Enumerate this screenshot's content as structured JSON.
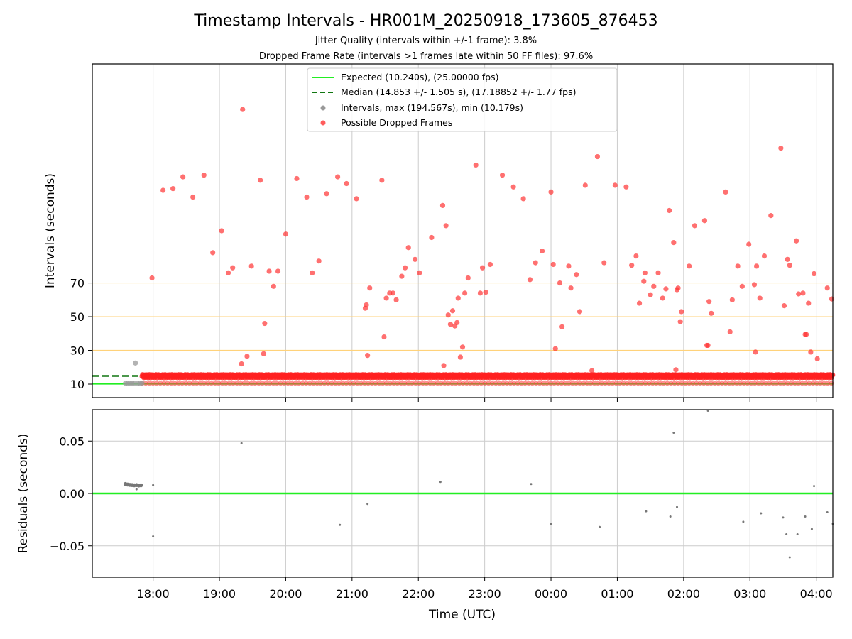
{
  "chart_data": [
    {
      "type": "scatter",
      "title": "Timestamp Intervals - HR001M_20250918_173605_876453",
      "subtitles": [
        "Jitter Quality (intervals within +/-1 frame): 3.8%",
        "Dropped Frame Rate (intervals >1 frames late within 50 FF files): 97.6%"
      ],
      "ylabel": "Intervals (seconds)",
      "xlim": [
        "17:05",
        "04:15"
      ],
      "xticks": [
        "18:00",
        "19:00",
        "20:00",
        "21:00",
        "22:00",
        "23:00",
        "00:00",
        "01:00",
        "02:00",
        "03:00",
        "04:00"
      ],
      "ylim": [
        2,
        200
      ],
      "yticks": [
        "10",
        "30",
        "50",
        "70"
      ],
      "ytick_values": [
        10,
        30,
        50,
        70
      ],
      "reference_lines": [
        {
          "y": 10.24,
          "color": "#22ee22",
          "style": "solid",
          "label": "Expected (10.240s), (25.00000 fps)"
        },
        {
          "y": 14.853,
          "color": "#117711",
          "style": "dashed",
          "label": "Median (14.853 +/- 1.505 s), (17.18852 +/- 1.77 fps)"
        }
      ],
      "threshold_lines": {
        "values": [
          30,
          50,
          70
        ],
        "color": "#ffd27a"
      },
      "legend": {
        "placement": "top-center",
        "entries": [
          {
            "label": "Expected (10.240s), (25.00000 fps)",
            "kind": "line",
            "color": "#22ee22"
          },
          {
            "label": "Median (14.853 +/- 1.505 s), (17.18852 +/- 1.77 fps)",
            "kind": "dashed",
            "color": "#117711"
          },
          {
            "label": "Intervals, max (194.567s), min (10.179s)",
            "kind": "point",
            "color": "#999999"
          },
          {
            "label": "Possible Dropped Frames",
            "kind": "point",
            "color": "#ff3333"
          }
        ]
      },
      "series": [
        {
          "name": "Intervals",
          "color": "#999999",
          "points": [
            [
              "17:35",
              10.5
            ],
            [
              "17:37",
              10.4
            ],
            [
              "17:39",
              10.5
            ],
            [
              "17:41",
              10.6
            ],
            [
              "17:43",
              10.5
            ],
            [
              "17:44",
              22.5
            ],
            [
              "17:46",
              10.4
            ],
            [
              "17:48",
              10.5
            ],
            [
              "17:50",
              10.6
            ]
          ]
        },
        {
          "name": "Possible Dropped Frames",
          "color": "#ff3333",
          "points": [
            [
              "17:59",
              73
            ],
            [
              "18:09",
              125
            ],
            [
              "18:18",
              126
            ],
            [
              "18:27",
              133
            ],
            [
              "18:36",
              121
            ],
            [
              "18:46",
              134
            ],
            [
              "18:54",
              88
            ],
            [
              "19:02",
              101
            ],
            [
              "19:08",
              76
            ],
            [
              "19:12",
              79
            ],
            [
              "19:20",
              22
            ],
            [
              "19:21",
              173
            ],
            [
              "19:25",
              26.5
            ],
            [
              "19:29",
              80
            ],
            [
              "19:37",
              131
            ],
            [
              "19:40",
              28
            ],
            [
              "19:41",
              46
            ],
            [
              "19:45",
              77
            ],
            [
              "19:49",
              68
            ],
            [
              "19:53",
              77
            ],
            [
              "20:00",
              99
            ],
            [
              "20:10",
              132
            ],
            [
              "20:19",
              121
            ],
            [
              "20:24",
              76
            ],
            [
              "20:30",
              83
            ],
            [
              "20:37",
              123
            ],
            [
              "20:47",
              133
            ],
            [
              "20:55",
              129
            ],
            [
              "21:04",
              120
            ],
            [
              "21:12",
              55
            ],
            [
              "21:13",
              57
            ],
            [
              "21:14",
              27
            ],
            [
              "21:16",
              67
            ],
            [
              "21:27",
              131
            ],
            [
              "21:29",
              38
            ],
            [
              "21:31",
              61
            ],
            [
              "21:34",
              64
            ],
            [
              "21:37",
              64
            ],
            [
              "21:40",
              60
            ],
            [
              "21:45",
              74
            ],
            [
              "21:48",
              79
            ],
            [
              "21:51",
              91
            ],
            [
              "21:57",
              84
            ],
            [
              "22:01",
              76
            ],
            [
              "22:12",
              97
            ],
            [
              "22:22",
              116
            ],
            [
              "22:23",
              21
            ],
            [
              "22:25",
              104
            ],
            [
              "22:27",
              51
            ],
            [
              "22:29",
              45.5
            ],
            [
              "22:31",
              53.5
            ],
            [
              "22:33",
              44.5
            ],
            [
              "22:35",
              46.5
            ],
            [
              "22:36",
              61
            ],
            [
              "22:38",
              26
            ],
            [
              "22:40",
              32
            ],
            [
              "22:42",
              64
            ],
            [
              "22:45",
              73
            ],
            [
              "22:52",
              140
            ],
            [
              "22:56",
              64
            ],
            [
              "22:58",
              79
            ],
            [
              "23:01",
              64.5
            ],
            [
              "23:05",
              81
            ],
            [
              "23:16",
              134
            ],
            [
              "23:26",
              127
            ],
            [
              "23:35",
              120
            ],
            [
              "23:41",
              72
            ],
            [
              "23:46",
              82
            ],
            [
              "23:52",
              89
            ],
            [
              "24:00",
              124
            ],
            [
              "24:02",
              81
            ],
            [
              "24:04",
              31
            ],
            [
              "24:08",
              70
            ],
            [
              "24:10",
              44
            ],
            [
              "24:16",
              80
            ],
            [
              "24:18",
              67
            ],
            [
              "24:23",
              75
            ],
            [
              "24:26",
              53
            ],
            [
              "24:31",
              128
            ],
            [
              "24:37",
              18
            ],
            [
              "24:42",
              145
            ],
            [
              "24:48",
              82
            ],
            [
              "24:58",
              128
            ],
            [
              "25:08",
              127
            ],
            [
              "25:13",
              80.5
            ],
            [
              "25:17",
              86
            ],
            [
              "25:20",
              58
            ],
            [
              "25:24",
              71
            ],
            [
              "25:25",
              76
            ],
            [
              "25:30",
              63
            ],
            [
              "25:33",
              68
            ],
            [
              "25:37",
              76
            ],
            [
              "25:41",
              61
            ],
            [
              "25:44",
              66.5
            ],
            [
              "25:47",
              113
            ],
            [
              "25:51",
              94
            ],
            [
              "25:53",
              18.5
            ],
            [
              "25:54",
              66
            ],
            [
              "25:55",
              67
            ],
            [
              "25:57",
              47
            ],
            [
              "25:58",
              53
            ],
            [
              "26:05",
              80
            ],
            [
              "26:10",
              104
            ],
            [
              "26:19",
              107
            ],
            [
              "26:21",
              33
            ],
            [
              "26:22",
              33
            ],
            [
              "26:23",
              59
            ],
            [
              "26:25",
              52
            ],
            [
              "26:38",
              124
            ],
            [
              "26:42",
              41
            ],
            [
              "26:44",
              60
            ],
            [
              "26:49",
              80
            ],
            [
              "26:53",
              68
            ],
            [
              "26:59",
              93
            ],
            [
              "27:04",
              69
            ],
            [
              "27:05",
              29
            ],
            [
              "27:06",
              80
            ],
            [
              "27:09",
              61
            ],
            [
              "27:13",
              86
            ],
            [
              "27:19",
              110
            ],
            [
              "27:28",
              150
            ],
            [
              "27:31",
              56.5
            ],
            [
              "27:34",
              84
            ],
            [
              "27:36",
              80.5
            ],
            [
              "27:42",
              95
            ],
            [
              "27:44",
              63.5
            ],
            [
              "27:48",
              64
            ],
            [
              "27:50",
              39.5
            ],
            [
              "27:51",
              39.5
            ],
            [
              "27:53",
              58
            ],
            [
              "27:55",
              29
            ],
            [
              "27:58",
              75.5
            ],
            [
              "28:01",
              25
            ],
            [
              "28:10",
              67
            ],
            [
              "28:14",
              60.5
            ]
          ],
          "baseline_band": {
            "from": "17:50",
            "to": "28:15",
            "low": 10.5,
            "high": 15.5
          }
        }
      ]
    },
    {
      "type": "scatter",
      "xlabel": "Time (UTC)",
      "ylabel": "Residuals (seconds)",
      "xlim": [
        "17:05",
        "04:15"
      ],
      "xticks": [
        "18:00",
        "19:00",
        "20:00",
        "21:00",
        "22:00",
        "23:00",
        "00:00",
        "01:00",
        "02:00",
        "03:00",
        "04:00"
      ],
      "ylim": [
        -0.08,
        0.08
      ],
      "yticks": [
        "0.05",
        "0.00",
        "−0.05"
      ],
      "ytick_values": [
        0.05,
        0.0,
        -0.05
      ],
      "reference_line": {
        "y": 0,
        "color": "#22ee22"
      },
      "series": [
        {
          "name": "",
          "color": "#777777",
          "points": [
            [
              "17:35",
              0.009
            ],
            [
              "17:37",
              0.0085
            ],
            [
              "17:39",
              0.0082
            ],
            [
              "17:41",
              0.008
            ],
            [
              "17:43",
              0.0078
            ],
            [
              "17:45",
              0.008
            ],
            [
              "17:47",
              0.0076
            ],
            [
              "17:49",
              0.0078
            ],
            [
              "17:45",
              0.004
            ],
            [
              "18:00",
              0.008
            ],
            [
              "18:00",
              -0.041
            ],
            [
              "19:20",
              0.048
            ],
            [
              "20:49",
              -0.03
            ],
            [
              "21:14",
              -0.01
            ],
            [
              "22:20",
              0.011
            ],
            [
              "23:42",
              0.009
            ],
            [
              "24:00",
              -0.029
            ],
            [
              "24:44",
              -0.032
            ],
            [
              "25:26",
              -0.017
            ],
            [
              "25:48",
              -0.022
            ],
            [
              "25:51",
              0.058
            ],
            [
              "25:54",
              -0.013
            ],
            [
              "26:22",
              0.079
            ],
            [
              "26:54",
              -0.027
            ],
            [
              "27:10",
              -0.019
            ],
            [
              "27:30",
              -0.023
            ],
            [
              "27:33",
              -0.039
            ],
            [
              "27:36",
              -0.061
            ],
            [
              "27:43",
              -0.039
            ],
            [
              "27:50",
              -0.022
            ],
            [
              "27:56",
              -0.034
            ],
            [
              "27:58",
              0.007
            ],
            [
              "28:10",
              -0.018
            ],
            [
              "28:15",
              -0.029
            ]
          ]
        }
      ]
    }
  ]
}
